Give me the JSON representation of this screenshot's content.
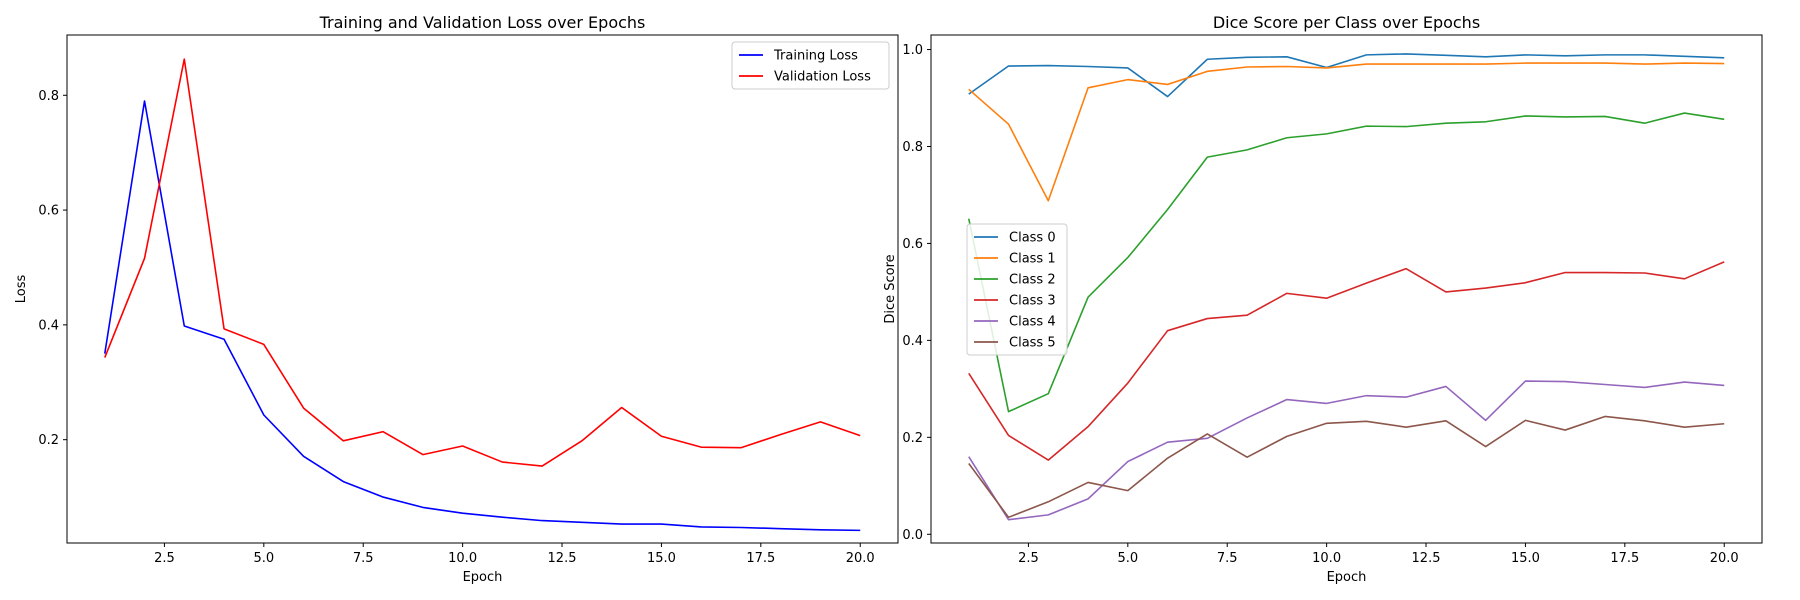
{
  "chart_data": [
    {
      "type": "line",
      "title": "Training and Validation Loss over Epochs",
      "xlabel": "Epoch",
      "ylabel": "Loss",
      "xlim": [
        0.05,
        20.95
      ],
      "ylim": [
        0.02,
        0.905
      ],
      "xticks": [
        2.5,
        5.0,
        7.5,
        10.0,
        12.5,
        15.0,
        17.5,
        20.0
      ],
      "xtick_labels": [
        "2.5",
        "5.0",
        "7.5",
        "10.0",
        "12.5",
        "15.0",
        "17.5",
        "20.0"
      ],
      "yticks": [
        0.2,
        0.4,
        0.6,
        0.8
      ],
      "ytick_labels": [
        "0.2",
        "0.4",
        "0.6",
        "0.8"
      ],
      "grid": false,
      "legend_position": "upper right",
      "x": [
        1,
        2,
        3,
        4,
        5,
        6,
        7,
        8,
        9,
        10,
        11,
        12,
        13,
        14,
        15,
        16,
        17,
        18,
        19,
        20
      ],
      "series": [
        {
          "name": "Training Loss",
          "color": "#0000ff",
          "values": [
            0.35,
            0.79,
            0.398,
            0.375,
            0.243,
            0.171,
            0.127,
            0.1,
            0.082,
            0.072,
            0.065,
            0.059,
            0.056,
            0.053,
            0.053,
            0.048,
            0.047,
            0.045,
            0.043,
            0.042
          ]
        },
        {
          "name": "Validation Loss",
          "color": "#ff0000",
          "values": [
            0.343,
            0.516,
            0.863,
            0.393,
            0.366,
            0.255,
            0.198,
            0.214,
            0.174,
            0.189,
            0.161,
            0.154,
            0.198,
            0.256,
            0.206,
            0.187,
            0.186,
            0.209,
            0.231,
            0.207
          ]
        }
      ]
    },
    {
      "type": "line",
      "title": "Dice Score per Class over Epochs",
      "xlabel": "Epoch",
      "ylabel": "Dice Score",
      "xlim": [
        0.05,
        20.95
      ],
      "ylim": [
        -0.018,
        1.03
      ],
      "xticks": [
        2.5,
        5.0,
        7.5,
        10.0,
        12.5,
        15.0,
        17.5,
        20.0
      ],
      "xtick_labels": [
        "2.5",
        "5.0",
        "7.5",
        "10.0",
        "12.5",
        "15.0",
        "17.5",
        "20.0"
      ],
      "yticks": [
        0.0,
        0.2,
        0.4,
        0.6,
        0.8,
        1.0
      ],
      "ytick_labels": [
        "0.0",
        "0.2",
        "0.4",
        "0.6",
        "0.8",
        "1.0"
      ],
      "grid": false,
      "legend_position": "center left",
      "x": [
        1,
        2,
        3,
        4,
        5,
        6,
        7,
        8,
        9,
        10,
        11,
        12,
        13,
        14,
        15,
        16,
        17,
        18,
        19,
        20
      ],
      "series": [
        {
          "name": "Class 0",
          "color": "#1f77b4",
          "values": [
            0.908,
            0.966,
            0.967,
            0.965,
            0.962,
            0.903,
            0.98,
            0.984,
            0.985,
            0.963,
            0.989,
            0.991,
            0.988,
            0.985,
            0.989,
            0.987,
            0.989,
            0.989,
            0.986,
            0.983
          ]
        },
        {
          "name": "Class 1",
          "color": "#ff7f0e",
          "values": [
            0.918,
            0.846,
            0.688,
            0.921,
            0.938,
            0.928,
            0.955,
            0.964,
            0.965,
            0.962,
            0.97,
            0.97,
            0.97,
            0.97,
            0.972,
            0.972,
            0.972,
            0.97,
            0.972,
            0.971
          ]
        },
        {
          "name": "Class 2",
          "color": "#2ca02c",
          "values": [
            0.651,
            0.253,
            0.29,
            0.489,
            0.571,
            0.67,
            0.778,
            0.793,
            0.818,
            0.826,
            0.842,
            0.841,
            0.848,
            0.851,
            0.863,
            0.861,
            0.862,
            0.848,
            0.869,
            0.856
          ]
        },
        {
          "name": "Class 3",
          "color": "#d62728",
          "values": [
            0.332,
            0.204,
            0.153,
            0.222,
            0.312,
            0.42,
            0.445,
            0.452,
            0.497,
            0.487,
            0.518,
            0.548,
            0.5,
            0.508,
            0.519,
            0.54,
            0.54,
            0.539,
            0.527,
            0.562
          ]
        },
        {
          "name": "Class 4",
          "color": "#9467bd",
          "values": [
            0.16,
            0.03,
            0.04,
            0.073,
            0.15,
            0.19,
            0.198,
            0.24,
            0.278,
            0.27,
            0.286,
            0.283,
            0.305,
            0.235,
            0.316,
            0.315,
            0.309,
            0.303,
            0.314,
            0.307
          ]
        },
        {
          "name": "Class 5",
          "color": "#8c564b",
          "values": [
            0.146,
            0.035,
            0.067,
            0.107,
            0.09,
            0.157,
            0.207,
            0.159,
            0.202,
            0.229,
            0.233,
            0.221,
            0.234,
            0.181,
            0.235,
            0.215,
            0.243,
            0.234,
            0.221,
            0.228
          ]
        }
      ]
    }
  ]
}
